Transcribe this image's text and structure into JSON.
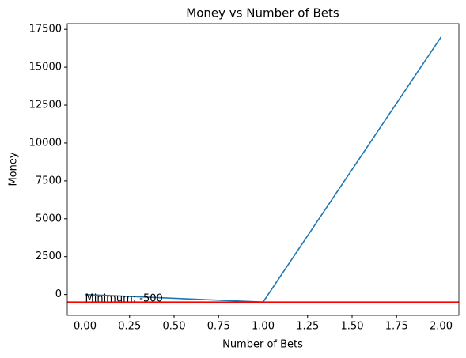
{
  "chart_data": {
    "type": "line",
    "title": "Money vs Number of Bets",
    "x_label": "Number of Bets",
    "y_label": "Money",
    "x": [
      0,
      1,
      2
    ],
    "series": [
      {
        "name": "Money",
        "color": "#1f77b4",
        "values": [
          0,
          -500,
          17000
        ]
      }
    ],
    "xlim": [
      -0.1,
      2.1
    ],
    "xticks": [
      {
        "value": 0,
        "label": "0.00"
      },
      {
        "value": 0.25,
        "label": "0.25"
      },
      {
        "value": 0.5,
        "label": "0.50"
      },
      {
        "value": 0.75,
        "label": "0.75"
      },
      {
        "value": 1,
        "label": "1.00"
      },
      {
        "value": 1.25,
        "label": "1.25"
      },
      {
        "value": 1.5,
        "label": "1.50"
      },
      {
        "value": 1.75,
        "label": "1.75"
      },
      {
        "value": 2,
        "label": "2.00"
      }
    ],
    "ylim": [
      -1375,
      17875
    ],
    "yticks": [
      0,
      2500,
      5000,
      7500,
      10000,
      12500,
      15000,
      17500
    ],
    "hline": {
      "value": -500,
      "color": "#ff0000"
    },
    "annotation": {
      "text": "Minimum: -500",
      "x": 0,
      "y": -500
    },
    "grid": false
  }
}
